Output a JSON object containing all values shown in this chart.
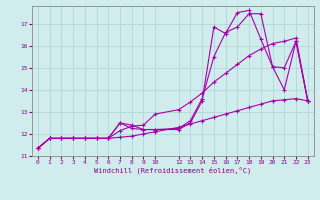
{
  "background_color": "#d0ecec",
  "grid_color": "#aad4d4",
  "line_color": "#aa00aa",
  "xlabel": "Windchill (Refroidissement éolien,°C)",
  "ylim": [
    11,
    17.8
  ],
  "yticks": [
    11,
    12,
    13,
    14,
    15,
    16,
    17
  ],
  "xlim": [
    -0.5,
    23.5
  ],
  "xticks": [
    0,
    1,
    2,
    3,
    4,
    5,
    6,
    7,
    8,
    9,
    10,
    12,
    13,
    14,
    15,
    16,
    17,
    18,
    19,
    20,
    21,
    22,
    23
  ],
  "lines_x": [
    [
      0,
      1,
      2,
      3,
      4,
      5,
      6,
      7,
      8,
      9,
      10,
      12,
      13,
      14,
      15,
      16,
      17,
      18,
      19,
      20,
      21,
      22,
      23
    ],
    [
      0,
      1,
      2,
      3,
      4,
      5,
      6,
      7,
      8,
      9,
      10,
      12,
      13,
      14,
      15,
      16,
      17,
      18,
      19,
      20,
      21,
      22,
      23
    ],
    [
      0,
      1,
      2,
      3,
      4,
      5,
      6,
      7,
      8,
      9,
      10,
      12,
      13,
      14,
      15,
      16,
      17,
      18,
      19,
      20,
      21,
      22,
      23
    ],
    [
      0,
      1,
      2,
      3,
      4,
      5,
      6,
      7,
      8,
      9,
      10,
      12,
      13,
      14,
      15,
      16,
      17,
      18,
      19,
      20,
      21,
      22,
      23
    ]
  ],
  "lines_y": [
    [
      11.35,
      11.8,
      11.8,
      11.8,
      11.8,
      11.8,
      11.8,
      11.85,
      11.9,
      12.0,
      12.1,
      12.3,
      12.45,
      12.6,
      12.75,
      12.9,
      13.05,
      13.2,
      13.35,
      13.5,
      13.55,
      13.6,
      13.5
    ],
    [
      11.35,
      11.8,
      11.8,
      11.8,
      11.8,
      11.8,
      11.8,
      12.15,
      12.35,
      12.4,
      12.9,
      13.1,
      13.45,
      13.85,
      14.35,
      14.75,
      15.15,
      15.55,
      15.85,
      16.1,
      16.2,
      16.35,
      13.5
    ],
    [
      11.35,
      11.8,
      11.8,
      11.8,
      11.8,
      11.8,
      11.8,
      12.5,
      12.4,
      12.2,
      12.2,
      12.25,
      12.6,
      13.6,
      15.5,
      16.6,
      16.85,
      17.45,
      17.45,
      15.05,
      14.0,
      16.2,
      13.5
    ],
    [
      11.35,
      11.8,
      11.8,
      11.8,
      11.8,
      11.8,
      11.8,
      12.5,
      12.25,
      12.2,
      12.2,
      12.2,
      12.5,
      13.5,
      16.85,
      16.55,
      17.5,
      17.6,
      16.3,
      15.05,
      15.0,
      16.2,
      13.5
    ]
  ]
}
